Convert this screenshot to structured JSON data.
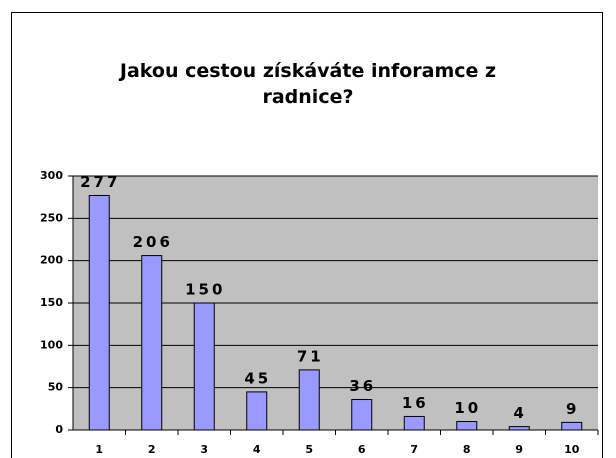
{
  "chart_data": {
    "type": "bar",
    "title": "Jakou cestou získáváte inforamce z radnice?",
    "categories": [
      "1",
      "2",
      "3",
      "4",
      "5",
      "6",
      "7",
      "8",
      "9",
      "10"
    ],
    "values": [
      277,
      206,
      150,
      45,
      71,
      36,
      16,
      10,
      4,
      9
    ],
    "color": "#9999ff",
    "ylim": [
      0,
      300
    ],
    "yticks": [
      0,
      50,
      100,
      150,
      200,
      250,
      300
    ],
    "grid": true
  }
}
